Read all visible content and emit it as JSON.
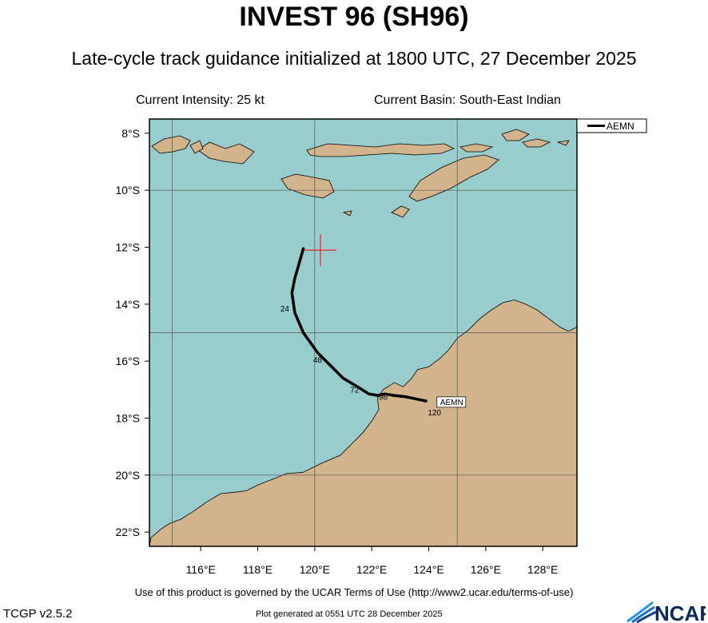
{
  "header": {
    "title": "INVEST 96 (SH96)",
    "subtitle": "Late-cycle track guidance initialized at 1800 UTC, 27 December 2025",
    "current_intensity": "Current Intensity: 25 kt",
    "current_basin": "Current Basin: South-East Indian"
  },
  "map": {
    "lat_range": [
      -22.5,
      -7.5
    ],
    "lon_range": [
      114.2,
      129.2
    ],
    "lat_ticks": [
      "8°S",
      "10°S",
      "12°S",
      "14°S",
      "16°S",
      "18°S",
      "20°S",
      "22°S"
    ],
    "lat_tick_values": [
      -8,
      -10,
      -12,
      -14,
      -16,
      -18,
      -20,
      -22
    ],
    "lon_ticks": [
      "116°E",
      "118°E",
      "120°E",
      "122°E",
      "124°E",
      "126°E",
      "128°E"
    ],
    "lon_tick_values": [
      116,
      118,
      120,
      122,
      124,
      126,
      128
    ],
    "gridlines_lon": [
      115,
      120,
      125
    ],
    "gridlines_lat": [
      -10,
      -15,
      -20
    ],
    "ocean_color": "#99cccc",
    "land_color": "#d2b48c",
    "current_position": {
      "lat": -12.1,
      "lon": 120.2
    },
    "current_position_color": "#ff0000"
  },
  "tracks": [
    {
      "name": "AEMN",
      "color": "#000000",
      "points": [
        {
          "lat": -12.05,
          "lon": 119.6
        },
        {
          "lat": -13.1,
          "lon": 119.3
        },
        {
          "lat": -13.6,
          "lon": 119.2
        },
        {
          "lat": -14.3,
          "lon": 119.3
        },
        {
          "lat": -15.0,
          "lon": 119.6
        },
        {
          "lat": -15.7,
          "lon": 120.1
        },
        {
          "lat": -16.3,
          "lon": 120.7
        },
        {
          "lat": -16.6,
          "lon": 121.0
        },
        {
          "lat": -16.9,
          "lon": 121.5
        },
        {
          "lat": -17.15,
          "lon": 121.9
        },
        {
          "lat": -17.2,
          "lon": 122.2
        },
        {
          "lat": -17.15,
          "lon": 122.45
        },
        {
          "lat": -17.2,
          "lon": 122.75
        },
        {
          "lat": -17.25,
          "lon": 123.2
        },
        {
          "lat": -17.4,
          "lon": 123.9
        }
      ],
      "tau_labels": [
        {
          "text": "24",
          "lat": -14.25,
          "lon": 118.95
        },
        {
          "text": "48",
          "lat": -16.05,
          "lon": 120.1
        },
        {
          "text": "72",
          "lat": -17.1,
          "lon": 121.4
        },
        {
          "text": "96",
          "lat": -17.35,
          "lon": 122.4
        },
        {
          "text": "120",
          "lat": -17.9,
          "lon": 124.2
        }
      ],
      "end_label": {
        "text": "AEMN",
        "lat": -17.45,
        "lon": 124.4
      }
    }
  ],
  "legend": {
    "entries": [
      {
        "name": "AEMN",
        "color": "#000000"
      }
    ]
  },
  "footer": {
    "terms": "Use of this product is governed by the UCAR Terms of Use (http://www2.ucar.edu/terms-of-use)",
    "version": "TCGP v2.5.2",
    "generated": "Plot generated at 0551 UTC   28 December 2025",
    "logo_text": "NCAR"
  }
}
